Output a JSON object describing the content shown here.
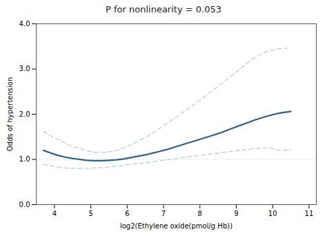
{
  "chart_data": {
    "type": "line",
    "title": "P for nonlinearity = 0.053",
    "xlabel": "log2(Ethylene oxide(pmol/g Hb))",
    "ylabel": "Odds of hypertension",
    "xlim": [
      3.5,
      11.2
    ],
    "ylim": [
      0.0,
      4.0
    ],
    "xticks": [
      4,
      5,
      6,
      7,
      8,
      9,
      10,
      11
    ],
    "yticks": [
      {
        "value": 0.0,
        "label": "0.0"
      },
      {
        "value": 1.0,
        "label": "1.0"
      },
      {
        "value": 2.0,
        "label": "2.0"
      },
      {
        "value": 3.0,
        "label": "3.0"
      },
      {
        "value": 4.0,
        "label": "4.0"
      }
    ],
    "grid": false,
    "reference_line": {
      "y": 1.0,
      "color": "#c0c0c0",
      "line_style": "dotted"
    },
    "x": [
      3.7,
      3.9,
      4.1,
      4.3,
      4.5,
      4.7,
      4.9,
      5.1,
      5.3,
      5.5,
      5.7,
      5.9,
      6.1,
      6.3,
      6.5,
      6.7,
      6.9,
      7.1,
      7.3,
      7.5,
      7.7,
      7.9,
      8.1,
      8.3,
      8.5,
      8.7,
      8.9,
      9.1,
      9.3,
      9.5,
      9.7,
      9.9,
      10.1,
      10.3,
      10.5
    ],
    "series": [
      {
        "color": "#b8cdd8",
        "line_style": "dashed",
        "values": [
          1.62,
          1.52,
          1.44,
          1.36,
          1.29,
          1.24,
          1.19,
          1.16,
          1.15,
          1.17,
          1.2,
          1.25,
          1.32,
          1.4,
          1.49,
          1.58,
          1.69,
          1.8,
          1.91,
          2.02,
          2.14,
          2.25,
          2.37,
          2.49,
          2.62,
          2.74,
          2.87,
          3.0,
          3.13,
          3.25,
          3.34,
          3.4,
          3.44,
          3.46,
          3.46
        ]
      },
      {
        "color": "#b8cdd8",
        "line_style": "dashed",
        "values": [
          0.89,
          0.86,
          0.83,
          0.81,
          0.8,
          0.8,
          0.8,
          0.81,
          0.82,
          0.83,
          0.85,
          0.87,
          0.89,
          0.91,
          0.93,
          0.95,
          0.97,
          0.99,
          1.01,
          1.04,
          1.06,
          1.08,
          1.1,
          1.12,
          1.14,
          1.16,
          1.18,
          1.2,
          1.22,
          1.24,
          1.25,
          1.26,
          1.21,
          1.2,
          1.22
        ]
      },
      {
        "color": "#2e5f8a",
        "line_style": "solid",
        "values": [
          1.2,
          1.14,
          1.09,
          1.05,
          1.02,
          1.0,
          0.98,
          0.97,
          0.97,
          0.98,
          0.99,
          1.01,
          1.04,
          1.07,
          1.1,
          1.14,
          1.18,
          1.22,
          1.27,
          1.32,
          1.37,
          1.42,
          1.47,
          1.52,
          1.57,
          1.63,
          1.69,
          1.75,
          1.81,
          1.87,
          1.92,
          1.97,
          2.01,
          2.04,
          2.06
        ]
      }
    ]
  }
}
